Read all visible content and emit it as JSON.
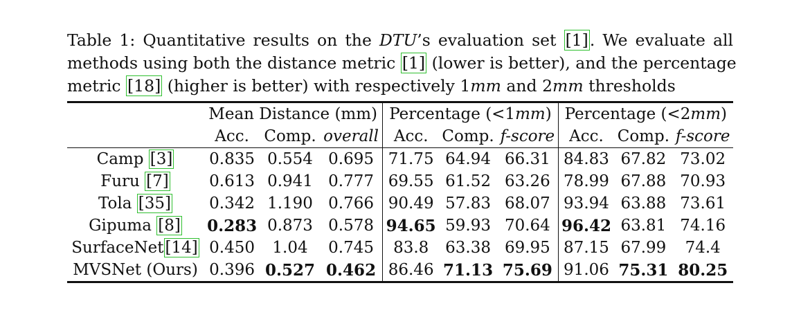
{
  "caption": {
    "line1": [
      "Table 1: Quantitative results on the ",
      "DTU",
      "’s evaluation set ",
      "[1]",
      ". We evaluate all"
    ],
    "line2": [
      "methods using both the distance metric ",
      "[1]",
      " (lower is better), and the percentage"
    ],
    "line3": [
      "metric ",
      "[18]",
      " (higher is better) with respectively 1",
      "mm",
      " and 2",
      "mm",
      " thresholds"
    ]
  },
  "table": {
    "groups": [
      "Mean Distance (mm)",
      "Percentage (<1",
      "mm",
      ")",
      "Percentage (<2",
      "mm",
      ")"
    ],
    "subheaders": [
      "Acc.",
      "Comp.",
      "overall",
      "Acc.",
      "Comp.",
      "f-score",
      "Acc.",
      "Comp.",
      "f-score"
    ],
    "rows": [
      {
        "name": "Camp ",
        "cite": "[3]",
        "values": [
          "0.835",
          "0.554",
          "0.695",
          "71.75",
          "64.94",
          "66.31",
          "84.83",
          "67.82",
          "73.02"
        ],
        "bold": []
      },
      {
        "name": "Furu ",
        "cite": "[7]",
        "values": [
          "0.613",
          "0.941",
          "0.777",
          "69.55",
          "61.52",
          "63.26",
          "78.99",
          "67.88",
          "70.93"
        ],
        "bold": []
      },
      {
        "name": "Tola ",
        "cite": "[35]",
        "values": [
          "0.342",
          "1.190",
          "0.766",
          "90.49",
          "57.83",
          "68.07",
          "93.94",
          "63.88",
          "73.61"
        ],
        "bold": []
      },
      {
        "name": "Gipuma ",
        "cite": "[8]",
        "values": [
          "0.283",
          "0.873",
          "0.578",
          "94.65",
          "59.93",
          "70.64",
          "96.42",
          "63.81",
          "74.16"
        ],
        "bold": [
          0,
          3,
          6
        ]
      },
      {
        "name": "SurfaceNet",
        "cite": "[14]",
        "values": [
          "0.450",
          "1.04",
          "0.745",
          "83.8",
          "63.38",
          "69.95",
          "87.15",
          "67.99",
          "74.4"
        ],
        "bold": []
      },
      {
        "name": "MVSNet (Ours)",
        "cite": "",
        "values": [
          "0.396",
          "0.527",
          "0.462",
          "86.46",
          "71.13",
          "75.69",
          "91.06",
          "75.31",
          "80.25"
        ],
        "bold": [
          1,
          2,
          4,
          5,
          7,
          8
        ]
      }
    ]
  }
}
